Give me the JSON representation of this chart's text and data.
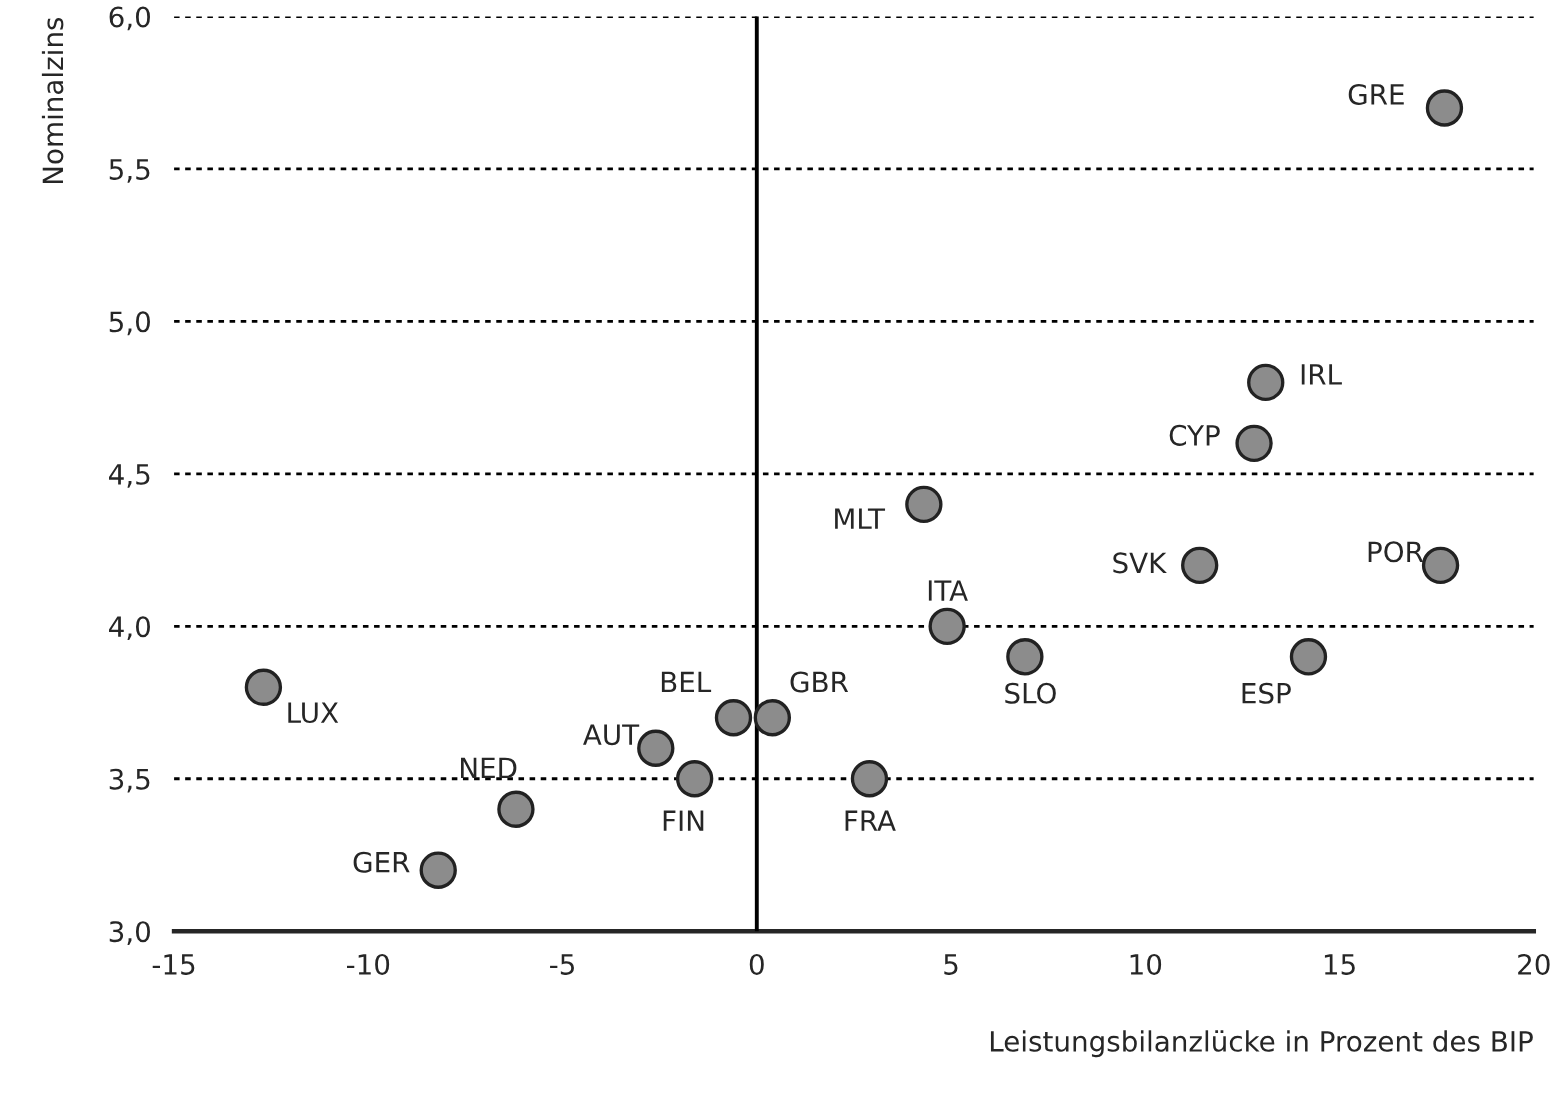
{
  "chart_data": {
    "type": "scatter",
    "xlabel": "Leistungsbilanzlücke in Prozent des BIP",
    "ylabel": "Nominalzins",
    "series": [
      {
        "color": "#8c8c8c",
        "x": [
          17.7,
          13.1,
          12.8,
          4.3,
          11.4,
          17.6,
          4.9,
          6.9,
          14.2,
          0.4,
          2.9,
          -12.7,
          -0.6,
          -2.6,
          -1.6,
          -6.2,
          -8.2
        ],
        "values": [
          5.7,
          4.8,
          4.6,
          4.4,
          4.2,
          4.2,
          4.0,
          3.9,
          3.9,
          3.7,
          3.5,
          3.8,
          3.7,
          3.6,
          3.5,
          3.4,
          3.2
        ]
      }
    ],
    "annotations": [
      {
        "text": "GRE",
        "x": 17.7,
        "y": 5.7
      },
      {
        "text": "IRL",
        "x": 13.1,
        "y": 4.8
      },
      {
        "text": "CYP",
        "x": 12.8,
        "y": 4.6
      },
      {
        "text": "MLT",
        "x": 4.3,
        "y": 4.4
      },
      {
        "text": "SVK",
        "x": 11.4,
        "y": 4.2
      },
      {
        "text": "POR",
        "x": 17.6,
        "y": 4.2
      },
      {
        "text": "ITA",
        "x": 4.9,
        "y": 4.0
      },
      {
        "text": "SLO",
        "x": 6.9,
        "y": 3.9
      },
      {
        "text": "ESP",
        "x": 14.2,
        "y": 3.9
      },
      {
        "text": "GBR",
        "x": 0.4,
        "y": 3.7
      },
      {
        "text": "FRA",
        "x": 2.9,
        "y": 3.5
      },
      {
        "text": "LUX",
        "x": -12.7,
        "y": 3.8
      },
      {
        "text": "BEL",
        "x": -0.6,
        "y": 3.7
      },
      {
        "text": "AUT",
        "x": -2.6,
        "y": 3.6
      },
      {
        "text": "FIN",
        "x": -1.6,
        "y": 3.5
      },
      {
        "text": "NED",
        "x": -6.2,
        "y": 3.4
      },
      {
        "text": "GER",
        "x": -8.2,
        "y": 3.2
      }
    ],
    "xlim": [
      -15,
      20
    ],
    "xticks": [
      -15,
      -10,
      -5,
      0,
      5,
      10,
      15,
      20
    ],
    "ylim": [
      3.0,
      6.0
    ],
    "yticks": [
      {
        "value": 3.0,
        "label": "3,0"
      },
      {
        "value": 3.5,
        "label": "3,5"
      },
      {
        "value": 4.0,
        "label": "4,0"
      },
      {
        "value": 4.5,
        "label": "4,5"
      },
      {
        "value": 5.0,
        "label": "5,0"
      },
      {
        "value": 5.5,
        "label": "5,5"
      },
      {
        "value": 6.0,
        "label": "6,0"
      }
    ],
    "ref_lines": [
      {
        "axis": "x",
        "value": 0,
        "color": "#000000"
      }
    ],
    "grid": "y",
    "marker": "circle",
    "legend": false
  }
}
